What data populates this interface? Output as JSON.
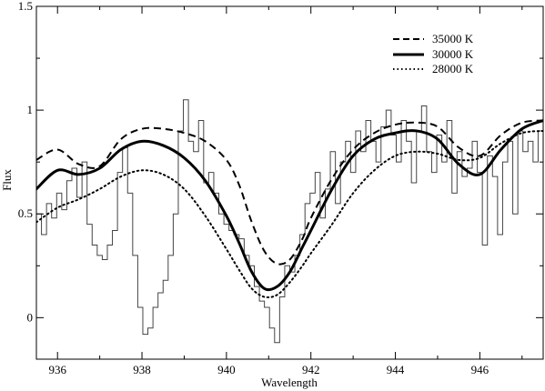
{
  "chart_data": {
    "type": "line",
    "title": "",
    "xlabel": "Wavelength",
    "ylabel": "Flux",
    "xlim": [
      935.5,
      947.5
    ],
    "ylim": [
      -0.2,
      1.5
    ],
    "xticks": [
      936,
      938,
      940,
      942,
      944,
      946
    ],
    "yticks": [
      0,
      0.5,
      1,
      1.5
    ],
    "xtick_labels": [
      "936",
      "938",
      "940",
      "942",
      "944",
      "946"
    ],
    "ytick_labels": [
      "0",
      "0.5",
      "1",
      "1.5"
    ],
    "grid": false,
    "legend_position": "top-right",
    "series": [
      {
        "name": "35000 K",
        "style": "dashed",
        "x": [
          935.5,
          936.0,
          936.5,
          937.0,
          937.5,
          938.0,
          938.5,
          939.0,
          939.5,
          940.0,
          940.3,
          940.6,
          940.9,
          941.2,
          941.5,
          941.8,
          942.0,
          942.5,
          943.0,
          943.5,
          944.0,
          944.5,
          945.0,
          945.5,
          946.0,
          946.5,
          947.0,
          947.5
        ],
        "y": [
          0.76,
          0.81,
          0.74,
          0.73,
          0.86,
          0.91,
          0.91,
          0.89,
          0.85,
          0.76,
          0.64,
          0.46,
          0.32,
          0.26,
          0.28,
          0.38,
          0.48,
          0.67,
          0.81,
          0.89,
          0.93,
          0.94,
          0.92,
          0.82,
          0.78,
          0.88,
          0.94,
          0.95
        ]
      },
      {
        "name": "30000 K",
        "style": "solid",
        "x": [
          935.5,
          936.0,
          936.5,
          937.0,
          937.5,
          938.0,
          938.5,
          939.0,
          939.5,
          940.0,
          940.3,
          940.6,
          940.9,
          941.2,
          941.5,
          941.8,
          942.0,
          942.5,
          943.0,
          943.5,
          944.0,
          944.5,
          945.0,
          945.5,
          946.0,
          946.5,
          947.0,
          947.5
        ],
        "y": [
          0.62,
          0.71,
          0.69,
          0.72,
          0.81,
          0.85,
          0.83,
          0.77,
          0.66,
          0.49,
          0.36,
          0.22,
          0.14,
          0.15,
          0.22,
          0.34,
          0.42,
          0.62,
          0.78,
          0.86,
          0.89,
          0.9,
          0.86,
          0.74,
          0.69,
          0.81,
          0.91,
          0.95
        ]
      },
      {
        "name": "28000 K",
        "style": "dotted",
        "x": [
          935.5,
          936.0,
          936.5,
          937.0,
          937.5,
          938.0,
          938.5,
          939.0,
          939.5,
          940.0,
          940.3,
          940.6,
          940.9,
          941.2,
          941.5,
          941.8,
          942.0,
          942.5,
          943.0,
          943.5,
          944.0,
          944.5,
          945.0,
          945.5,
          946.0,
          946.5,
          947.0,
          947.5
        ],
        "y": [
          0.46,
          0.53,
          0.57,
          0.62,
          0.68,
          0.71,
          0.69,
          0.62,
          0.49,
          0.33,
          0.23,
          0.14,
          0.1,
          0.11,
          0.17,
          0.25,
          0.31,
          0.45,
          0.6,
          0.71,
          0.78,
          0.8,
          0.79,
          0.76,
          0.77,
          0.84,
          0.89,
          0.9
        ]
      },
      {
        "name": "",
        "style": "step",
        "x": [
          935.5,
          935.62,
          935.74,
          935.86,
          935.98,
          936.1,
          936.22,
          936.34,
          936.46,
          936.58,
          936.7,
          936.82,
          936.94,
          937.06,
          937.18,
          937.3,
          937.42,
          937.54,
          937.66,
          937.78,
          937.9,
          938.02,
          938.14,
          938.26,
          938.38,
          938.5,
          938.62,
          938.74,
          938.86,
          938.98,
          939.1,
          939.22,
          939.34,
          939.46,
          939.58,
          939.7,
          939.82,
          939.94,
          940.06,
          940.18,
          940.3,
          940.42,
          940.54,
          940.66,
          940.78,
          940.9,
          941.02,
          941.14,
          941.26,
          941.38,
          941.5,
          941.62,
          941.74,
          941.86,
          941.98,
          942.1,
          942.22,
          942.34,
          942.46,
          942.58,
          942.7,
          942.82,
          942.94,
          943.06,
          943.18,
          943.3,
          943.42,
          943.54,
          943.66,
          943.78,
          943.9,
          944.02,
          944.14,
          944.26,
          944.38,
          944.5,
          944.62,
          944.74,
          944.86,
          944.98,
          945.1,
          945.22,
          945.34,
          945.46,
          945.58,
          945.7,
          945.82,
          945.94,
          946.06,
          946.18,
          946.3,
          946.42,
          946.54,
          946.66,
          946.78,
          946.9,
          947.02,
          947.14,
          947.26,
          947.38
        ],
        "y": [
          0.5,
          0.4,
          0.55,
          0.48,
          0.6,
          0.52,
          0.66,
          0.72,
          0.58,
          0.75,
          0.45,
          0.35,
          0.3,
          0.28,
          0.35,
          0.42,
          0.7,
          0.82,
          0.6,
          0.3,
          0.05,
          -0.08,
          -0.05,
          0.05,
          0.12,
          0.18,
          0.3,
          0.5,
          0.9,
          1.05,
          0.85,
          0.8,
          0.95,
          0.65,
          0.7,
          0.6,
          0.5,
          0.45,
          0.42,
          0.4,
          0.38,
          0.3,
          0.25,
          0.15,
          0.08,
          0.05,
          -0.05,
          -0.12,
          0.1,
          0.25,
          0.22,
          0.3,
          0.4,
          0.55,
          0.6,
          0.7,
          0.48,
          0.62,
          0.8,
          0.55,
          0.75,
          0.85,
          0.7,
          0.9,
          0.8,
          0.95,
          0.85,
          0.75,
          0.92,
          1.0,
          0.88,
          0.75,
          0.95,
          0.85,
          0.65,
          0.9,
          1.02,
          0.8,
          0.7,
          0.88,
          0.75,
          0.95,
          0.6,
          0.8,
          0.68,
          0.72,
          0.85,
          0.7,
          0.35,
          0.78,
          0.68,
          0.4,
          0.75,
          0.85,
          0.5,
          0.9,
          0.8,
          0.85,
          0.75,
          0.9
        ]
      }
    ]
  }
}
